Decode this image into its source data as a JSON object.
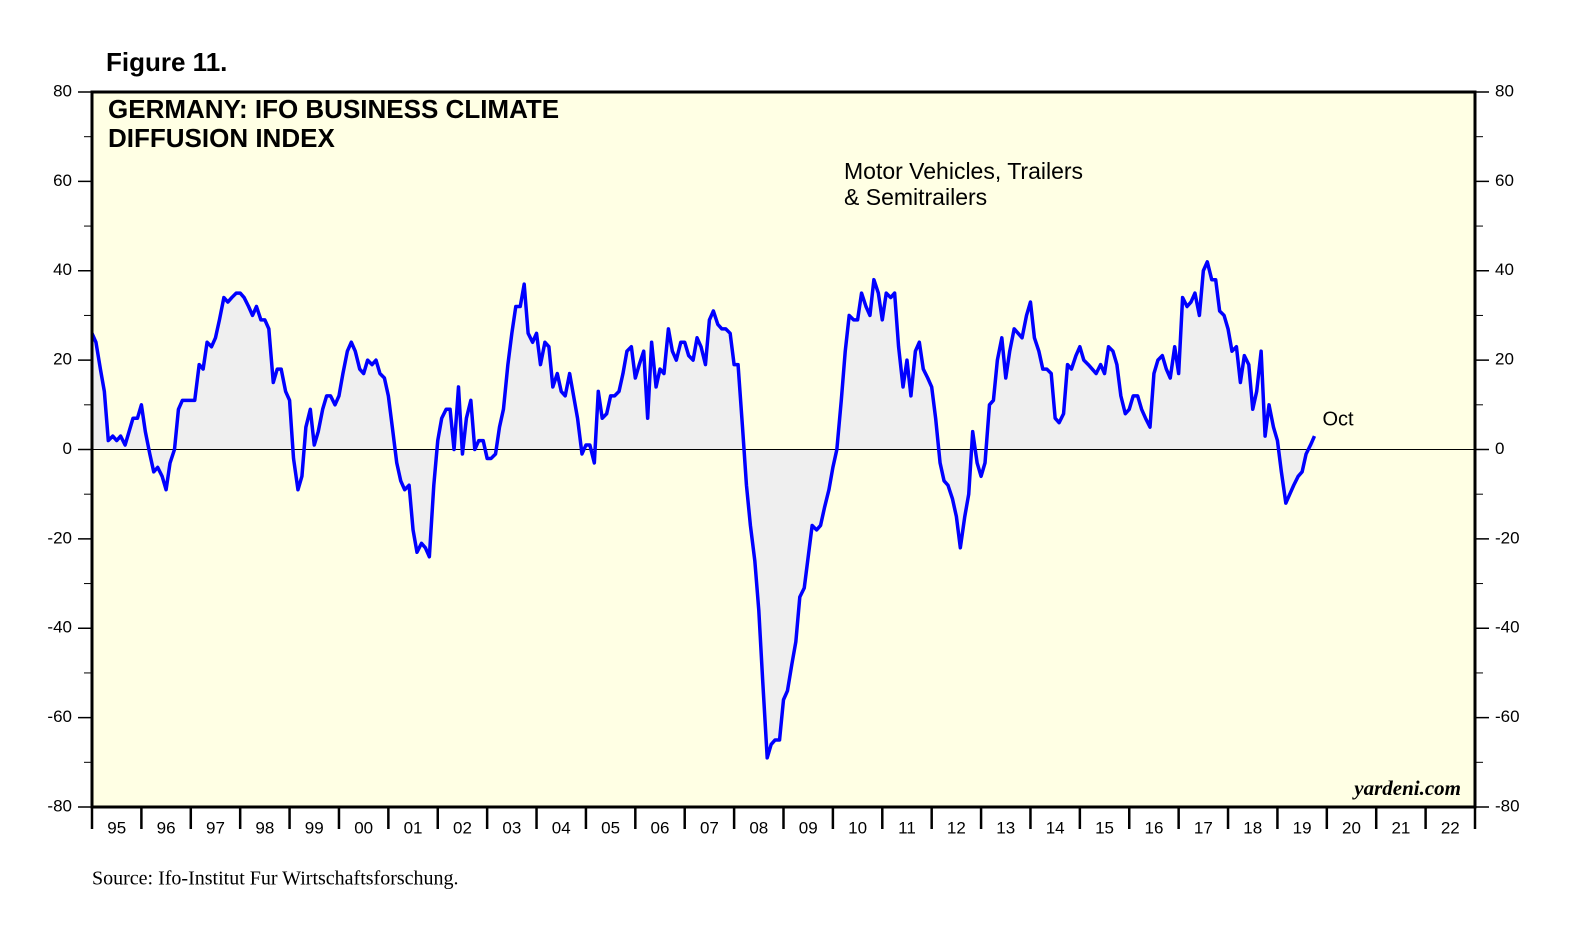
{
  "chart_data": {
    "type": "line",
    "figure_label": "Figure 11.",
    "title": [
      "GERMANY: IFO BUSINESS CLIMATE",
      "DIFFUSION INDEX"
    ],
    "subtitle": [
      "Motor Vehicles, Trailers",
      "& Semitrailers"
    ],
    "source": "Source: Ifo-Institut Fur Wirtschaftsforschung.",
    "watermark": "yardeni.com",
    "annotations": [
      {
        "text": "Oct",
        "point": 297
      }
    ],
    "xlim": [
      1995,
      2023
    ],
    "xticks": [
      {
        "value": 1995,
        "label": "95"
      },
      {
        "value": 1996,
        "label": "96"
      },
      {
        "value": 1997,
        "label": "97"
      },
      {
        "value": 1998,
        "label": "98"
      },
      {
        "value": 1999,
        "label": "99"
      },
      {
        "value": 2000,
        "label": "00"
      },
      {
        "value": 2001,
        "label": "01"
      },
      {
        "value": 2002,
        "label": "02"
      },
      {
        "value": 2003,
        "label": "03"
      },
      {
        "value": 2004,
        "label": "04"
      },
      {
        "value": 2005,
        "label": "05"
      },
      {
        "value": 2006,
        "label": "06"
      },
      {
        "value": 2007,
        "label": "07"
      },
      {
        "value": 2008,
        "label": "08"
      },
      {
        "value": 2009,
        "label": "09"
      },
      {
        "value": 2010,
        "label": "10"
      },
      {
        "value": 2011,
        "label": "11"
      },
      {
        "value": 2012,
        "label": "12"
      },
      {
        "value": 2013,
        "label": "13"
      },
      {
        "value": 2014,
        "label": "14"
      },
      {
        "value": 2015,
        "label": "15"
      },
      {
        "value": 2016,
        "label": "16"
      },
      {
        "value": 2017,
        "label": "17"
      },
      {
        "value": 2018,
        "label": "18"
      },
      {
        "value": 2019,
        "label": "19"
      },
      {
        "value": 2020,
        "label": "20"
      },
      {
        "value": 2021,
        "label": "21"
      },
      {
        "value": 2022,
        "label": "22"
      }
    ],
    "ylim": [
      -80,
      80
    ],
    "yticks": [
      -80,
      -60,
      -40,
      -20,
      0,
      20,
      40,
      60,
      80
    ],
    "yminor_ticks": [
      -70,
      -50,
      -30,
      -10,
      10,
      30,
      50,
      70
    ],
    "y2lim": [
      -80,
      80
    ],
    "y2ticks": [
      -80,
      -60,
      -40,
      -20,
      0,
      20,
      40,
      60,
      80
    ],
    "zero_line": 0,
    "background": "#ffffe4",
    "area_color": "#efefef",
    "series": [
      {
        "color": "#0000ff",
        "x": [
          1995,
          1995.08,
          1995.17,
          1995.25,
          1995.33,
          1995.42,
          1995.5,
          1995.58,
          1995.67,
          1995.75,
          1995.83,
          1995.92,
          1996,
          1996.08,
          1996.17,
          1996.25,
          1996.33,
          1996.42,
          1996.5,
          1996.58,
          1996.67,
          1996.75,
          1996.83,
          1996.92,
          1997,
          1997.08,
          1997.17,
          1997.25,
          1997.33,
          1997.42,
          1997.5,
          1997.58,
          1997.67,
          1997.75,
          1997.83,
          1997.92,
          1998,
          1998.08,
          1998.17,
          1998.25,
          1998.33,
          1998.42,
          1998.5,
          1998.58,
          1998.67,
          1998.75,
          1998.83,
          1998.92,
          1999,
          1999.08,
          1999.17,
          1999.25,
          1999.33,
          1999.42,
          1999.5,
          1999.58,
          1999.67,
          1999.75,
          1999.83,
          1999.92,
          2000,
          2000.08,
          2000.17,
          2000.25,
          2000.33,
          2000.42,
          2000.5,
          2000.58,
          2000.67,
          2000.75,
          2000.83,
          2000.92,
          2001,
          2001.08,
          2001.17,
          2001.25,
          2001.33,
          2001.42,
          2001.5,
          2001.58,
          2001.67,
          2001.75,
          2001.83,
          2001.92,
          2002,
          2002.08,
          2002.17,
          2002.25,
          2002.33,
          2002.42,
          2002.5,
          2002.58,
          2002.67,
          2002.75,
          2002.83,
          2002.92,
          2003,
          2003.08,
          2003.17,
          2003.25,
          2003.33,
          2003.42,
          2003.5,
          2003.58,
          2003.67,
          2003.75,
          2003.83,
          2003.92,
          2004,
          2004.08,
          2004.17,
          2004.25,
          2004.33,
          2004.42,
          2004.5,
          2004.58,
          2004.67,
          2004.75,
          2004.83,
          2004.92,
          2005,
          2005.08,
          2005.17,
          2005.25,
          2005.33,
          2005.42,
          2005.5,
          2005.58,
          2005.67,
          2005.75,
          2005.83,
          2005.92,
          2006,
          2006.08,
          2006.17,
          2006.25,
          2006.33,
          2006.42,
          2006.5,
          2006.58,
          2006.67,
          2006.75,
          2006.83,
          2006.92,
          2007,
          2007.08,
          2007.17,
          2007.25,
          2007.33,
          2007.42,
          2007.5,
          2007.58,
          2007.67,
          2007.75,
          2007.83,
          2007.92,
          2008,
          2008.08,
          2008.17,
          2008.25,
          2008.33,
          2008.42,
          2008.5,
          2008.58,
          2008.67,
          2008.75,
          2008.83,
          2008.92,
          2009,
          2009.08,
          2009.17,
          2009.25,
          2009.33,
          2009.42,
          2009.5,
          2009.58,
          2009.67,
          2009.75,
          2009.83,
          2009.92,
          2010,
          2010.08,
          2010.17,
          2010.25,
          2010.33,
          2010.42,
          2010.5,
          2010.58,
          2010.67,
          2010.75,
          2010.83,
          2010.92,
          2011,
          2011.08,
          2011.17,
          2011.25,
          2011.33,
          2011.42,
          2011.5,
          2011.58,
          2011.67,
          2011.75,
          2011.83,
          2011.92,
          2012,
          2012.08,
          2012.17,
          2012.25,
          2012.33,
          2012.42,
          2012.5,
          2012.58,
          2012.67,
          2012.75,
          2012.83,
          2012.92,
          2013,
          2013.08,
          2013.17,
          2013.25,
          2013.33,
          2013.42,
          2013.5,
          2013.58,
          2013.67,
          2013.75,
          2013.83,
          2013.92,
          2014,
          2014.08,
          2014.17,
          2014.25,
          2014.33,
          2014.42,
          2014.5,
          2014.58,
          2014.67,
          2014.75,
          2014.83,
          2014.92,
          2015,
          2015.08,
          2015.17,
          2015.25,
          2015.33,
          2015.42,
          2015.5,
          2015.58,
          2015.67,
          2015.75,
          2015.83,
          2015.92,
          2016,
          2016.08,
          2016.17,
          2016.25,
          2016.33,
          2016.42,
          2016.5,
          2016.58,
          2016.67,
          2016.75,
          2016.83,
          2016.92,
          2017,
          2017.08,
          2017.17,
          2017.25,
          2017.33,
          2017.42,
          2017.5,
          2017.58,
          2017.67,
          2017.75,
          2017.83,
          2017.92,
          2018,
          2018.08,
          2018.17,
          2018.25,
          2018.33,
          2018.42,
          2018.5,
          2018.58,
          2018.67,
          2018.75,
          2018.83,
          2018.92,
          2019,
          2019.08,
          2019.17,
          2019.25,
          2019.33,
          2019.42,
          2019.5,
          2019.58,
          2019.67,
          2019.75
        ],
        "values": [
          26,
          24,
          18,
          13,
          2,
          3,
          2,
          3,
          1,
          4,
          7,
          7,
          10,
          4,
          -1,
          -5,
          -4,
          -6,
          -9,
          -3,
          0,
          9,
          11,
          11,
          11,
          11,
          19,
          18,
          24,
          23,
          25,
          29,
          34,
          33,
          34,
          35,
          35,
          34,
          32,
          30,
          32,
          29,
          29,
          27,
          15,
          18,
          18,
          13,
          11,
          -2,
          -9,
          -6,
          5,
          9,
          1,
          4,
          9,
          12,
          12,
          10,
          12,
          17,
          22,
          24,
          22,
          18,
          17,
          20,
          19,
          20,
          17,
          16,
          12,
          5,
          -3,
          -7,
          -9,
          -8,
          -18,
          -23,
          -21,
          -22,
          -24,
          -8,
          2,
          7,
          9,
          9,
          0,
          14,
          -1,
          7,
          11,
          0,
          2,
          2,
          -2,
          -2,
          -1,
          5,
          9,
          19,
          26,
          32,
          32,
          37,
          26,
          24,
          26,
          19,
          24,
          23,
          14,
          17,
          13,
          12,
          17,
          12,
          7,
          -1,
          1,
          1,
          -3,
          13,
          7,
          8,
          12,
          12,
          13,
          17,
          22,
          23,
          16,
          19,
          22,
          7,
          24,
          14,
          18,
          17,
          27,
          22,
          20,
          24,
          24,
          21,
          20,
          25,
          23,
          19,
          29,
          31,
          28,
          27,
          27,
          26,
          19,
          19,
          5,
          -8,
          -17,
          -25,
          -36,
          -52,
          -69,
          -66,
          -65,
          -65,
          -56,
          -54,
          -48,
          -43,
          -33,
          -31,
          -24,
          -17,
          -18,
          -17,
          -13,
          -9,
          -4,
          0,
          11,
          22,
          30,
          29,
          29,
          35,
          32,
          30,
          38,
          35,
          29,
          35,
          34,
          35,
          23,
          14,
          20,
          12,
          22,
          24,
          18,
          16,
          14,
          7,
          -3,
          -7,
          -8,
          -11,
          -15,
          -22,
          -15,
          -10,
          4,
          -3,
          -6,
          -3,
          10,
          11,
          20,
          25,
          16,
          22,
          27,
          26,
          25,
          30,
          33,
          25,
          22,
          18,
          18,
          17,
          7,
          6,
          8,
          19,
          18,
          21,
          23,
          20,
          19,
          18,
          17,
          19,
          17,
          23,
          22,
          19,
          12,
          8,
          9,
          12,
          12,
          9,
          7,
          5,
          17,
          20,
          21,
          18,
          16,
          23,
          17,
          34,
          32,
          33,
          35,
          30,
          40,
          42,
          38,
          38,
          31,
          30,
          27,
          22,
          23,
          15,
          21,
          19,
          9,
          13,
          22,
          3,
          10,
          5,
          2,
          -5,
          -12,
          -10,
          -8,
          -6,
          -5,
          -1,
          1,
          3
        ]
      }
    ]
  }
}
